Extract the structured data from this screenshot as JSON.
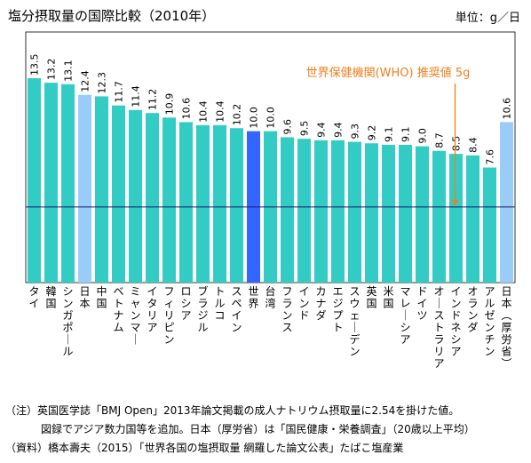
{
  "chart_data": {
    "type": "bar",
    "title": "塩分摂取量の国際比較（2010年）",
    "unit": "単位：g／日",
    "categories": [
      "タイ",
      "韓国",
      "シンガポール",
      "日本",
      "中国",
      "ベトナム",
      "ミャンマー",
      "イタリア",
      "フィリピン",
      "ロシア",
      "ブラジル",
      "トルコ",
      "スペイン",
      "世界",
      "台湾",
      "フランス",
      "インド",
      "カナダ",
      "エジプト",
      "スウェーデン",
      "英国",
      "米国",
      "マレーシア",
      "ドイツ",
      "オーストラリア",
      "インドネシア",
      "オランダ",
      "アルゼンチン",
      "日本（厚労省）"
    ],
    "values": [
      13.5,
      13.2,
      13.1,
      12.4,
      12.3,
      11.7,
      11.4,
      11.2,
      10.9,
      10.6,
      10.4,
      10.4,
      10.2,
      10.0,
      10.0,
      9.6,
      9.5,
      9.4,
      9.4,
      9.3,
      9.2,
      9.1,
      9.1,
      9.0,
      8.7,
      8.5,
      8.4,
      7.6,
      10.6
    ],
    "value_labels": [
      "13.5",
      "13.2",
      "13.1",
      "12.4",
      "12.3",
      "11.7",
      "11.4",
      "11.2",
      "10.9",
      "10.6",
      "10.4",
      "10.4",
      "10.2",
      "10.0",
      "10.0",
      "9.6",
      "9.5",
      "9.4",
      "9.4",
      "9.3",
      "9.2",
      "9.1",
      "9.1",
      "9.0",
      "8.7",
      "8.5",
      "8.4",
      "7.6",
      "10.6"
    ],
    "highlight": {
      "asia_added": [
        3,
        28
      ],
      "world": [
        13
      ]
    },
    "ylim": [
      0,
      13.5
    ],
    "reference_line": {
      "value": 5,
      "label": "世界保健機関(WHO) 推奨値 5g"
    },
    "colors": {
      "default": "#33ccc4",
      "asia_added": "#99ccf7",
      "world": "#3366ff",
      "who": "#f07f1e"
    }
  },
  "notes": {
    "note1": "（注）英国医学誌「BMJ Open」2013年論文掲載の成人ナトリウム摂取量に2.54を掛けた値。",
    "note2": "図録でアジア数力国等を追加。日本（厚労省）は「国民健康・栄養調査」（20歳以上平均）",
    "source": "（資料）橋本壽夫（2015）「世界各国の塩摂取量 網羅した論文公表」たばこ塩産業"
  }
}
